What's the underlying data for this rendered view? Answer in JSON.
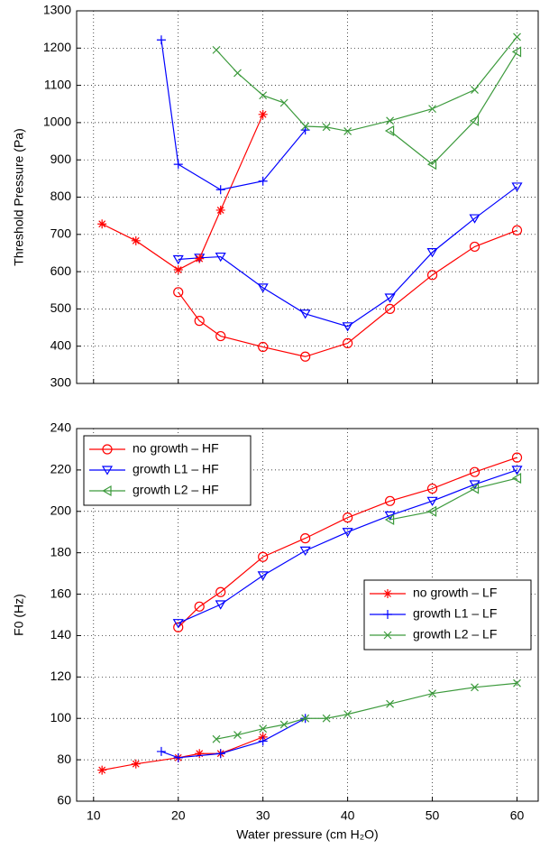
{
  "chart_data": [
    {
      "type": "line",
      "ylabel": "Threshold Pressure (Pa)",
      "xlim": [
        8,
        62.5
      ],
      "ylim": [
        300,
        1300
      ],
      "xticks": [
        10,
        20,
        30,
        40,
        50,
        60
      ],
      "xticklabels": false,
      "yticks": [
        300,
        400,
        500,
        600,
        700,
        800,
        900,
        1000,
        1100,
        1200,
        1300
      ],
      "grid": true,
      "series": [
        {
          "color": "#ff0000",
          "marker": "o",
          "x": [
            20,
            22.5,
            25,
            30,
            35,
            40,
            45,
            50,
            55,
            60
          ],
          "values": [
            545,
            468,
            427,
            398,
            372,
            408,
            500,
            591,
            667,
            711
          ]
        },
        {
          "color": "#0000ff",
          "marker": "v",
          "x": [
            20,
            22.5,
            25,
            30,
            35,
            40,
            45,
            50,
            55,
            60
          ],
          "values": [
            633,
            637,
            640,
            557,
            487,
            453,
            530,
            652,
            743,
            828
          ]
        },
        {
          "color": "#3c9a3c",
          "marker": "<",
          "x": [
            45,
            50,
            55,
            60
          ],
          "values": [
            978,
            888,
            1005,
            1190
          ]
        },
        {
          "color": "#ff0000",
          "marker": "*",
          "x": [
            11,
            15,
            20,
            22.5,
            25,
            30
          ],
          "values": [
            728,
            683,
            605,
            635,
            765,
            1022
          ]
        },
        {
          "color": "#0000ff",
          "marker": "+",
          "x": [
            18,
            20,
            25,
            30,
            35
          ],
          "values": [
            1222,
            888,
            820,
            843,
            980
          ]
        },
        {
          "color": "#3c9a3c",
          "marker": "x",
          "x": [
            24.5,
            27,
            30,
            32.5,
            35,
            37.5,
            40,
            45,
            50,
            55,
            60
          ],
          "values": [
            1195,
            1133,
            1073,
            1053,
            990,
            988,
            977,
            1005,
            1037,
            1088,
            1230
          ]
        }
      ]
    },
    {
      "type": "line",
      "ylabel": "F0 (Hz)",
      "xlabel": "Water pressure (cm H₂O)",
      "xlim": [
        8,
        62.5
      ],
      "ylim": [
        60,
        240
      ],
      "xticks": [
        10,
        20,
        30,
        40,
        50,
        60
      ],
      "xticklabels": true,
      "yticks": [
        60,
        80,
        100,
        120,
        140,
        160,
        180,
        200,
        220,
        240
      ],
      "grid": true,
      "series": [
        {
          "name": "no growth – HF",
          "legend": "upper left",
          "color": "#ff0000",
          "marker": "o",
          "x": [
            20,
            22.5,
            25,
            30,
            35,
            40,
            45,
            50,
            55,
            60
          ],
          "values": [
            144,
            154,
            161,
            178,
            187,
            197,
            205,
            211,
            219,
            226
          ]
        },
        {
          "name": "growth L1 – HF",
          "legend": "upper left",
          "color": "#0000ff",
          "marker": "v",
          "x": [
            20,
            25,
            30,
            35,
            40,
            45,
            50,
            55,
            60
          ],
          "values": [
            146,
            155,
            169,
            181,
            190,
            198,
            205,
            213,
            220
          ]
        },
        {
          "name": "growth L2 – HF",
          "legend": "upper left",
          "color": "#3c9a3c",
          "marker": "<",
          "x": [
            45,
            50,
            55,
            60
          ],
          "values": [
            196,
            200,
            211,
            216
          ]
        },
        {
          "name": "no growth – LF",
          "legend": "center right",
          "color": "#ff0000",
          "marker": "*",
          "x": [
            11,
            15,
            20,
            22.5,
            25,
            30
          ],
          "values": [
            75,
            78,
            81,
            83,
            83,
            91
          ]
        },
        {
          "name": "growth L1 – LF",
          "legend": "center right",
          "color": "#0000ff",
          "marker": "+",
          "x": [
            18,
            20,
            25,
            30,
            35
          ],
          "values": [
            84,
            81,
            83,
            89,
            100
          ]
        },
        {
          "name": "growth L2 – LF",
          "legend": "center right",
          "color": "#3c9a3c",
          "marker": "x",
          "x": [
            24.5,
            27,
            30,
            32.5,
            35,
            37.5,
            40,
            45,
            50,
            55,
            60
          ],
          "values": [
            90,
            92,
            95,
            97,
            100,
            100,
            102,
            107,
            112,
            115,
            117
          ]
        }
      ]
    }
  ]
}
